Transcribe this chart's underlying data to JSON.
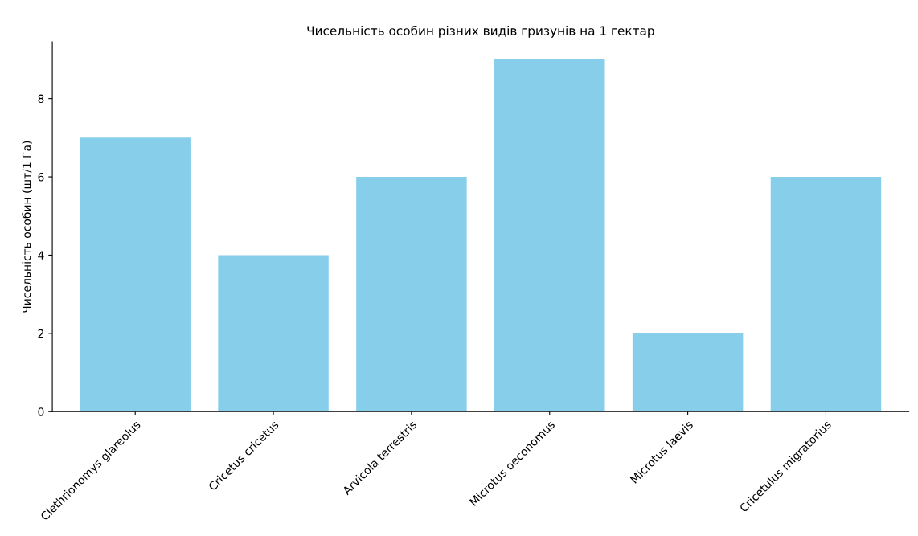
{
  "chart_data": {
    "type": "bar",
    "title": "Чисельність особин різних видів гризунів на 1 гектар",
    "ylabel": "Чисельність особин (шт/1 Га)",
    "categories": [
      "Clethrionomys glareolus",
      "Cricetus cricetus",
      "Arvicola terrestris",
      "Microtus oeconomus",
      "Microtus laevis",
      "Cricetulus migratorius"
    ],
    "values": [
      7,
      4,
      6,
      9,
      2,
      6
    ],
    "color": "#87ceeb",
    "ylim": [
      0,
      9.45
    ],
    "yticks": [
      0,
      2,
      4,
      6,
      8
    ],
    "grid": false,
    "legend": false
  }
}
